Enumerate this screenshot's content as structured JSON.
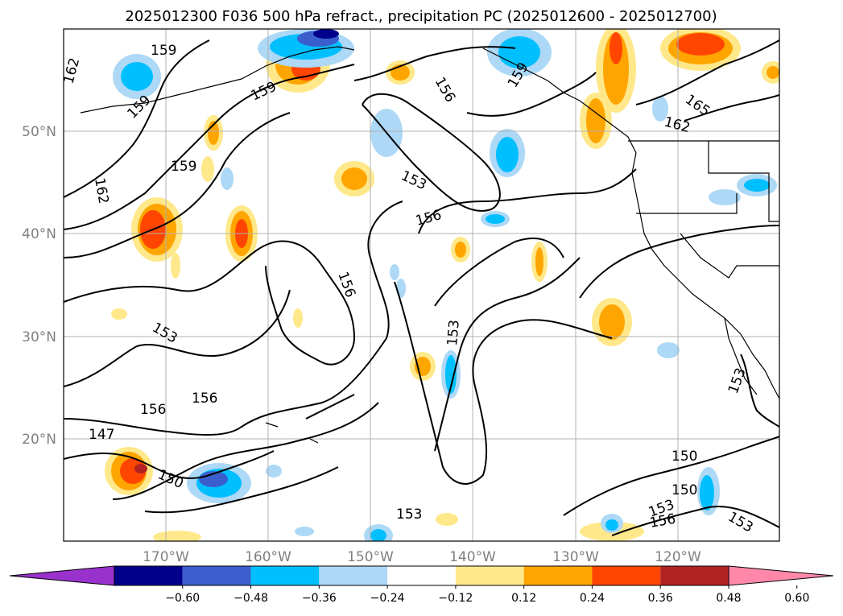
{
  "title": "2025012300 F036 500 hPa refract., precipitation PC (2025012600 - 2025012700)",
  "lat_labels": [
    "50°N",
    "40°N",
    "30°N",
    "20°N"
  ],
  "lon_labels": [
    "170°W",
    "160°W",
    "150°W",
    "140°W",
    "130°W",
    "120°W"
  ],
  "colorbar": {
    "ticks": [
      "−0.60",
      "−0.48",
      "−0.36",
      "−0.24",
      "−0.12",
      "0.12",
      "0.24",
      "0.36",
      "0.48",
      "0.60"
    ],
    "colors": [
      "#9932cc",
      "#00008b",
      "#3a5fcd",
      "#00bfff",
      "#add8f6",
      "#ffffff",
      "#ffe88a",
      "#ffa500",
      "#ff4500",
      "#b22222",
      "#ff88aa"
    ]
  },
  "contour_labels": [
    "162",
    "159",
    "159",
    "159",
    "162",
    "156",
    "153",
    "156",
    "156",
    "153",
    "153",
    "156",
    "156",
    "147",
    "150",
    "153",
    "150",
    "150",
    "153",
    "156",
    "153",
    "162",
    "165",
    "159"
  ]
}
